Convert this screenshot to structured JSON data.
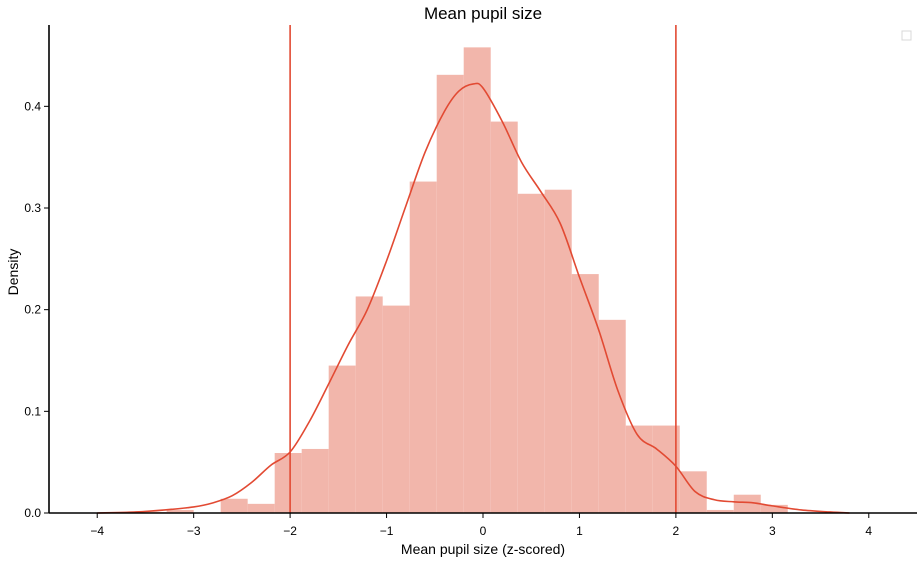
{
  "chart_data": {
    "type": "histogram",
    "title": "Mean pupil size",
    "xlabel": "Mean pupil size (z-scored)",
    "ylabel": "Density",
    "xlim": [
      -4.5,
      4.5
    ],
    "ylim": [
      0,
      0.48
    ],
    "x_ticks": [
      -4,
      -3,
      -2,
      -1,
      0,
      1,
      2,
      3,
      4
    ],
    "x_tick_labels": [
      "−4",
      "−3",
      "−2",
      "−1",
      "0",
      "1",
      "2",
      "3",
      "4"
    ],
    "y_ticks": [
      0.0,
      0.1,
      0.2,
      0.3,
      0.4
    ],
    "y_tick_labels": [
      "0.0",
      "0.1",
      "0.2",
      "0.3",
      "0.4"
    ],
    "grid": false,
    "legend": {
      "placement": "top-right",
      "entries": []
    },
    "colors": {
      "bars": "#f2b6ab",
      "kde": "#e24a33",
      "vlines": "#e24a33"
    },
    "bins": {
      "edges": [
        -3.56,
        -3.28,
        -3.0,
        -2.72,
        -2.44,
        -2.16,
        -1.88,
        -1.6,
        -1.32,
        -1.04,
        -0.76,
        -0.48,
        -0.2,
        0.08,
        0.36,
        0.64,
        0.92,
        1.2,
        1.48,
        1.76,
        2.04,
        2.32,
        2.6,
        2.88,
        3.16
      ],
      "density": [
        0.001,
        0.003,
        0.0,
        0.014,
        0.009,
        0.059,
        0.063,
        0.145,
        0.213,
        0.204,
        0.326,
        0.431,
        0.458,
        0.385,
        0.314,
        0.318,
        0.235,
        0.19,
        0.086,
        0.086,
        0.041,
        0.003,
        0.018,
        0.008
      ]
    },
    "kde": {
      "x": [
        -4.0,
        -3.6,
        -3.3,
        -3.0,
        -2.8,
        -2.6,
        -2.4,
        -2.2,
        -2.0,
        -1.8,
        -1.6,
        -1.4,
        -1.2,
        -1.0,
        -0.8,
        -0.6,
        -0.4,
        -0.25,
        -0.1,
        0.0,
        0.2,
        0.4,
        0.6,
        0.8,
        1.0,
        1.2,
        1.4,
        1.6,
        1.8,
        2.0,
        2.2,
        2.4,
        2.6,
        2.8,
        3.0,
        3.3,
        3.6,
        3.8
      ],
      "y": [
        0.0,
        0.001,
        0.003,
        0.006,
        0.01,
        0.017,
        0.03,
        0.047,
        0.06,
        0.09,
        0.127,
        0.165,
        0.2,
        0.248,
        0.302,
        0.355,
        0.395,
        0.415,
        0.422,
        0.418,
        0.385,
        0.345,
        0.316,
        0.285,
        0.232,
        0.18,
        0.12,
        0.077,
        0.063,
        0.046,
        0.021,
        0.013,
        0.011,
        0.01,
        0.007,
        0.003,
        0.001,
        0.0
      ]
    },
    "vlines": [
      -2,
      2
    ]
  }
}
